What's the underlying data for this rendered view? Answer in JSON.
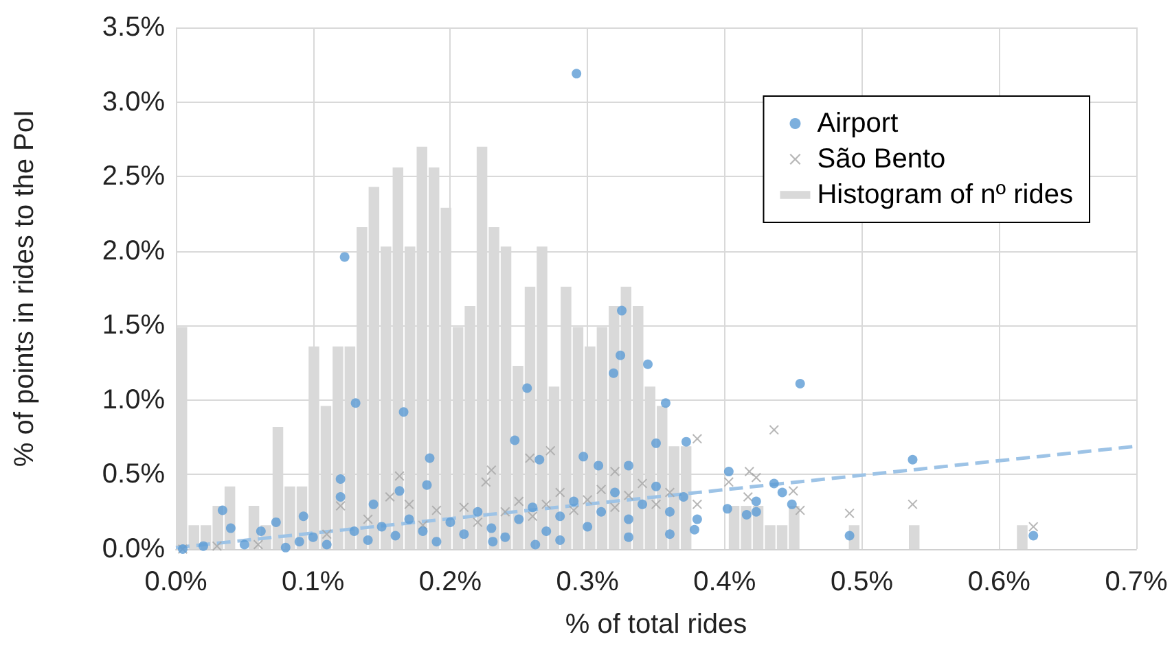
{
  "chart_data": {
    "type": "scatter",
    "xlabel": "% of total rides",
    "ylabel": "% of points in rides to the PoI",
    "xlim": [
      0,
      0.7
    ],
    "ylim": [
      0,
      3.5
    ],
    "xticks": [
      {
        "value": 0,
        "label": "0.0%"
      },
      {
        "value": 0.1,
        "label": "0.1%"
      },
      {
        "value": 0.2,
        "label": "0.2%"
      },
      {
        "value": 0.3,
        "label": "0.3%"
      },
      {
        "value": 0.4,
        "label": "0.4%"
      },
      {
        "value": 0.5,
        "label": "0.5%"
      },
      {
        "value": 0.6,
        "label": "0.6%"
      },
      {
        "value": 0.7,
        "label": "0.7%"
      }
    ],
    "yticks": [
      {
        "value": 0,
        "label": "0.0%"
      },
      {
        "value": 0.5,
        "label": "0.5%"
      },
      {
        "value": 1,
        "label": "1.0%"
      },
      {
        "value": 1.5,
        "label": "1.5%"
      },
      {
        "value": 2,
        "label": "2.0%"
      },
      {
        "value": 2.5,
        "label": "2.5%"
      },
      {
        "value": 3,
        "label": "3.0%"
      },
      {
        "value": 3.5,
        "label": "3.5%"
      }
    ],
    "grid": true,
    "legend": "top right",
    "series": [
      {
        "type": "histogram",
        "name": "Histogram of nº rides",
        "color": "#d9d9d9",
        "bins": [
          0,
          0.00875,
          0.0175,
          0.02625,
          0.035,
          0.04375,
          0.0525,
          0.06125,
          0.07,
          0.07875,
          0.0875,
          0.09625,
          0.105,
          0.11375,
          0.1225,
          0.13125,
          0.14,
          0.14875,
          0.1575,
          0.16625,
          0.175,
          0.18375,
          0.1925,
          0.20125,
          0.21,
          0.21875,
          0.2275,
          0.23625,
          0.245,
          0.25375,
          0.2625,
          0.27125,
          0.28,
          0.28875,
          0.2975,
          0.30625,
          0.315,
          0.32375,
          0.3325,
          0.34125,
          0.35,
          0.35875,
          0.3675,
          0.37625,
          0.385,
          0.39375,
          0.4025,
          0.41125,
          0.42,
          0.42875,
          0.4375,
          0.44625,
          0.455,
          0.46375,
          0.4725,
          0.48125,
          0.49,
          0.49875,
          0.5075,
          0.51625,
          0.525,
          0.53375,
          0.5425,
          0.55125,
          0.56,
          0.56875,
          0.5775,
          0.58625,
          0.595,
          0.60375,
          0.6125,
          0.62125,
          0.63
        ],
        "values": [
          1.49,
          0.16,
          0.16,
          0.29,
          0.42,
          0,
          0.29,
          0.16,
          0.82,
          0.42,
          0.42,
          1.36,
          0.96,
          1.36,
          1.36,
          2.16,
          2.43,
          2.03,
          2.56,
          2.03,
          2.7,
          2.56,
          2.29,
          1.49,
          1.63,
          2.7,
          2.16,
          2.03,
          1.23,
          1.76,
          2.03,
          1.09,
          1.76,
          1.49,
          1.36,
          1.49,
          1.63,
          1.76,
          1.63,
          1.09,
          0.96,
          0.69,
          0.69,
          0,
          0,
          0,
          0.29,
          0.29,
          0.29,
          0.16,
          0.16,
          0.29,
          0,
          0,
          0,
          0,
          0.16,
          0,
          0,
          0,
          0,
          0.16,
          0,
          0,
          0,
          0,
          0,
          0,
          0,
          0,
          0.16,
          0
        ]
      },
      {
        "type": "line",
        "color": "#9dc3e6",
        "line_style": "dashed",
        "marker": "none",
        "x": [
          0,
          0.7
        ],
        "values": [
          0.01,
          0.69
        ]
      },
      {
        "name": "São Bento",
        "color": "#a5a5a5",
        "marker": "cross",
        "x": [
          0.005,
          0.03,
          0.06,
          0.11,
          0.14,
          0.18,
          0.19,
          0.21,
          0.22,
          0.24,
          0.25,
          0.26,
          0.27,
          0.28,
          0.29,
          0.3,
          0.31,
          0.32,
          0.33,
          0.34,
          0.35,
          0.36,
          0.38,
          0.163,
          0.156,
          0.17,
          0.12,
          0.23,
          0.258,
          0.273,
          0.226,
          0.38,
          0.436,
          0.403,
          0.418,
          0.423,
          0.417,
          0.45,
          0.455,
          0.32,
          0.491,
          0.537,
          0.625
        ],
        "values": [
          0,
          0.02,
          0.03,
          0.1,
          0.2,
          0.16,
          0.26,
          0.28,
          0.18,
          0.25,
          0.32,
          0.22,
          0.3,
          0.38,
          0.26,
          0.33,
          0.4,
          0.28,
          0.36,
          0.44,
          0.3,
          0.38,
          0.3,
          0.49,
          0.35,
          0.3,
          0.29,
          0.53,
          0.61,
          0.66,
          0.45,
          0.74,
          0.8,
          0.45,
          0.52,
          0.48,
          0.35,
          0.39,
          0.26,
          0.52,
          0.24,
          0.3,
          0.15
        ]
      },
      {
        "name": "Airport",
        "color": "#5b9bd5",
        "marker": "circle",
        "x": [
          0.005,
          0.02,
          0.05,
          0.08,
          0.09,
          0.1,
          0.11,
          0.13,
          0.14,
          0.15,
          0.16,
          0.17,
          0.18,
          0.19,
          0.2,
          0.21,
          0.22,
          0.23,
          0.24,
          0.25,
          0.26,
          0.27,
          0.28,
          0.29,
          0.3,
          0.31,
          0.32,
          0.33,
          0.34,
          0.35,
          0.36,
          0.37,
          0.38,
          0.28,
          0.33,
          0.36,
          0.292,
          0.123,
          0.131,
          0.166,
          0.185,
          0.12,
          0.12,
          0.034,
          0.04,
          0.183,
          0.163,
          0.144,
          0.073,
          0.062,
          0.093,
          0.325,
          0.324,
          0.319,
          0.344,
          0.357,
          0.256,
          0.247,
          0.35,
          0.372,
          0.455,
          0.265,
          0.297,
          0.308,
          0.33,
          0.403,
          0.402,
          0.416,
          0.423,
          0.423,
          0.436,
          0.442,
          0.449,
          0.378,
          0.262,
          0.231,
          0.537,
          0.491,
          0.625
        ],
        "values": [
          0,
          0.02,
          0.03,
          0.01,
          0.05,
          0.08,
          0.03,
          0.12,
          0.06,
          0.15,
          0.09,
          0.2,
          0.12,
          0.05,
          0.18,
          0.1,
          0.25,
          0.14,
          0.08,
          0.2,
          0.28,
          0.12,
          0.22,
          0.32,
          0.15,
          0.25,
          0.38,
          0.2,
          0.3,
          0.42,
          0.25,
          0.35,
          0.2,
          0.06,
          0.08,
          0.1,
          3.19,
          1.96,
          0.98,
          0.92,
          0.61,
          0.47,
          0.35,
          0.26,
          0.14,
          0.43,
          0.39,
          0.3,
          0.18,
          0.12,
          0.22,
          1.6,
          1.3,
          1.18,
          1.24,
          0.98,
          1.08,
          0.73,
          0.71,
          0.72,
          1.11,
          0.6,
          0.62,
          0.56,
          0.56,
          0.52,
          0.27,
          0.23,
          0.25,
          0.32,
          0.44,
          0.38,
          0.3,
          0.13,
          0.03,
          0.05,
          0.6,
          0.09,
          0.09
        ]
      }
    ]
  }
}
